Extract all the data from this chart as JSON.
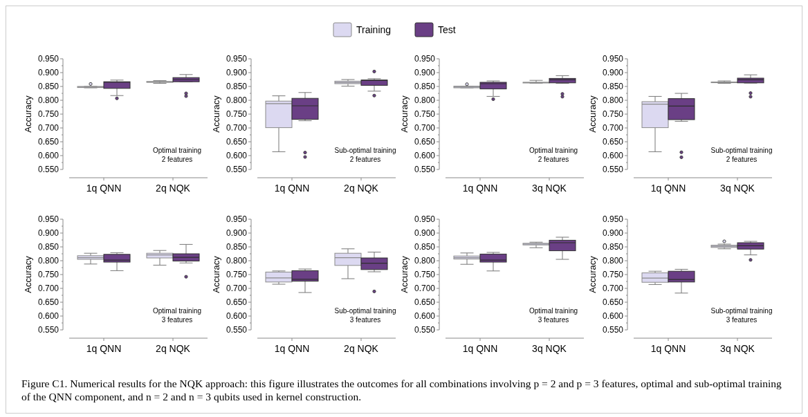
{
  "chart_data": [
    {
      "type": "box",
      "ylabel": "Accuracy",
      "categories": [
        "1q QNN",
        "2q NQK"
      ],
      "ylim": [
        0.55,
        0.95
      ],
      "yticks": [
        {
          "value": 0.55,
          "label": "0.550"
        },
        {
          "value": 0.575,
          "label": null
        },
        {
          "value": 0.6,
          "label": "0.600"
        },
        {
          "value": 0.625,
          "label": null
        },
        {
          "value": 0.65,
          "label": "0.650"
        },
        {
          "value": 0.675,
          "label": null
        },
        {
          "value": 0.7,
          "label": "0.700"
        },
        {
          "value": 0.725,
          "label": null
        },
        {
          "value": 0.75,
          "label": "0.750"
        },
        {
          "value": 0.775,
          "label": null
        },
        {
          "value": 0.8,
          "label": "0.800"
        },
        {
          "value": 0.825,
          "label": null
        },
        {
          "value": 0.85,
          "label": "0.850"
        },
        {
          "value": 0.875,
          "label": null
        },
        {
          "value": 0.9,
          "label": "0.900"
        },
        {
          "value": 0.925,
          "label": null
        },
        {
          "value": 0.95,
          "label": "0.950"
        }
      ],
      "legend": "top",
      "annotations": [
        "Optimal training",
        "2 features"
      ],
      "series": [
        {
          "name": "Training",
          "color": "#dcd9f1",
          "boxes": [
            {
              "low": 0.845,
              "q1": 0.846,
              "median": 0.848,
              "q3": 0.85,
              "high": 0.85,
              "outliers": [
                0.859
              ]
            },
            {
              "low": 0.861,
              "q1": 0.865,
              "median": 0.866,
              "q3": 0.868,
              "high": 0.871
            }
          ]
        },
        {
          "name": "Test",
          "color": "#6a3f85",
          "boxes": [
            {
              "low": 0.817,
              "q1": 0.843,
              "median": 0.865,
              "q3": 0.867,
              "high": 0.873,
              "outliers": [
                0.807
              ]
            },
            {
              "low": 0.867,
              "q1": 0.867,
              "median": 0.875,
              "q3": 0.882,
              "high": 0.893,
              "outliers": [
                0.825,
                0.815
              ]
            }
          ]
        }
      ]
    },
    {
      "type": "box",
      "ylabel": "Accuracy",
      "categories": [
        "1q QNN",
        "2q NQK"
      ],
      "ylim": [
        0.55,
        0.95
      ],
      "yticks": [
        {
          "value": 0.55,
          "label": "0.550"
        },
        {
          "value": 0.575,
          "label": null
        },
        {
          "value": 0.6,
          "label": "0.600"
        },
        {
          "value": 0.625,
          "label": null
        },
        {
          "value": 0.65,
          "label": "0.650"
        },
        {
          "value": 0.675,
          "label": null
        },
        {
          "value": 0.7,
          "label": "0.700"
        },
        {
          "value": 0.725,
          "label": null
        },
        {
          "value": 0.75,
          "label": "0.750"
        },
        {
          "value": 0.775,
          "label": null
        },
        {
          "value": 0.8,
          "label": "0.800"
        },
        {
          "value": 0.825,
          "label": null
        },
        {
          "value": 0.85,
          "label": "0.850"
        },
        {
          "value": 0.875,
          "label": null
        },
        {
          "value": 0.9,
          "label": "0.900"
        },
        {
          "value": 0.925,
          "label": null
        },
        {
          "value": 0.95,
          "label": "0.950"
        }
      ],
      "annotations": [
        "Sub-optimal training",
        "2 features"
      ],
      "series": [
        {
          "color": "#dcd9f1",
          "boxes": [
            {
              "low": 0.614,
              "q1": 0.701,
              "median": 0.788,
              "q3": 0.797,
              "high": 0.816
            },
            {
              "low": 0.851,
              "q1": 0.86,
              "median": 0.864,
              "q3": 0.869,
              "high": 0.875
            }
          ]
        },
        {
          "color": "#6a3f85",
          "boxes": [
            {
              "low": 0.726,
              "q1": 0.731,
              "median": 0.78,
              "q3": 0.807,
              "high": 0.828,
              "outliers": [
                0.611,
                0.595
              ]
            },
            {
              "low": 0.833,
              "q1": 0.854,
              "median": 0.872,
              "q3": 0.873,
              "high": 0.878,
              "outliers": [
                0.904,
                0.817
              ]
            }
          ]
        }
      ]
    },
    {
      "type": "box",
      "ylabel": "Accuracy",
      "categories": [
        "1q QNN",
        "3q NQK"
      ],
      "ylim": [
        0.55,
        0.95
      ],
      "yticks": [
        {
          "value": 0.55,
          "label": "0.550"
        },
        {
          "value": 0.575,
          "label": null
        },
        {
          "value": 0.6,
          "label": "0.600"
        },
        {
          "value": 0.625,
          "label": null
        },
        {
          "value": 0.65,
          "label": "0.650"
        },
        {
          "value": 0.675,
          "label": null
        },
        {
          "value": 0.7,
          "label": "0.700"
        },
        {
          "value": 0.725,
          "label": null
        },
        {
          "value": 0.75,
          "label": "0.750"
        },
        {
          "value": 0.775,
          "label": null
        },
        {
          "value": 0.8,
          "label": "0.800"
        },
        {
          "value": 0.825,
          "label": null
        },
        {
          "value": 0.85,
          "label": "0.850"
        },
        {
          "value": 0.875,
          "label": null
        },
        {
          "value": 0.9,
          "label": "0.900"
        },
        {
          "value": 0.925,
          "label": null
        },
        {
          "value": 0.95,
          "label": "0.950"
        }
      ],
      "annotations": [
        "Optimal training",
        "2 features"
      ],
      "series": [
        {
          "color": "#dcd9f1",
          "boxes": [
            {
              "low": 0.845,
              "q1": 0.845,
              "median": 0.848,
              "q3": 0.851,
              "high": 0.851,
              "outliers": [
                0.858
              ]
            },
            {
              "low": 0.862,
              "q1": 0.863,
              "median": 0.864,
              "q3": 0.865,
              "high": 0.872
            }
          ]
        },
        {
          "color": "#6a3f85",
          "boxes": [
            {
              "low": 0.814,
              "q1": 0.841,
              "median": 0.86,
              "q3": 0.865,
              "high": 0.87,
              "outliers": [
                0.804
              ]
            },
            {
              "low": 0.861,
              "q1": 0.863,
              "median": 0.874,
              "q3": 0.879,
              "high": 0.889,
              "outliers": [
                0.823,
                0.813
              ]
            }
          ]
        }
      ]
    },
    {
      "type": "box",
      "ylabel": "Accuracy",
      "categories": [
        "1q QNN",
        "3q NQK"
      ],
      "ylim": [
        0.55,
        0.95
      ],
      "yticks": [
        {
          "value": 0.55,
          "label": "0.550"
        },
        {
          "value": 0.575,
          "label": null
        },
        {
          "value": 0.6,
          "label": "0.600"
        },
        {
          "value": 0.625,
          "label": null
        },
        {
          "value": 0.65,
          "label": "0.650"
        },
        {
          "value": 0.675,
          "label": null
        },
        {
          "value": 0.7,
          "label": "0.700"
        },
        {
          "value": 0.725,
          "label": null
        },
        {
          "value": 0.75,
          "label": "0.750"
        },
        {
          "value": 0.775,
          "label": null
        },
        {
          "value": 0.8,
          "label": "0.800"
        },
        {
          "value": 0.825,
          "label": null
        },
        {
          "value": 0.85,
          "label": "0.850"
        },
        {
          "value": 0.875,
          "label": null
        },
        {
          "value": 0.9,
          "label": "0.900"
        },
        {
          "value": 0.925,
          "label": null
        },
        {
          "value": 0.95,
          "label": "0.950"
        }
      ],
      "annotations": [
        "Sub-optimal training",
        "2 features"
      ],
      "series": [
        {
          "color": "#dcd9f1",
          "boxes": [
            {
              "low": 0.614,
              "q1": 0.701,
              "median": 0.786,
              "q3": 0.795,
              "high": 0.814
            },
            {
              "low": 0.861,
              "q1": 0.864,
              "median": 0.865,
              "q3": 0.866,
              "high": 0.87
            }
          ]
        },
        {
          "color": "#6a3f85",
          "boxes": [
            {
              "low": 0.724,
              "q1": 0.73,
              "median": 0.779,
              "q3": 0.806,
              "high": 0.825,
              "outliers": [
                0.612,
                0.594
              ]
            },
            {
              "low": 0.862,
              "q1": 0.863,
              "median": 0.874,
              "q3": 0.88,
              "high": 0.892,
              "outliers": [
                0.826,
                0.813
              ]
            }
          ]
        }
      ]
    },
    {
      "type": "box",
      "ylabel": "Accuracy",
      "categories": [
        "1q QNN",
        "2q NQK"
      ],
      "ylim": [
        0.55,
        0.95
      ],
      "yticks": [
        {
          "value": 0.55,
          "label": "0.550"
        },
        {
          "value": 0.575,
          "label": null
        },
        {
          "value": 0.6,
          "label": "0.600"
        },
        {
          "value": 0.625,
          "label": null
        },
        {
          "value": 0.65,
          "label": "0.650"
        },
        {
          "value": 0.675,
          "label": null
        },
        {
          "value": 0.7,
          "label": "0.700"
        },
        {
          "value": 0.725,
          "label": null
        },
        {
          "value": 0.75,
          "label": "0.750"
        },
        {
          "value": 0.775,
          "label": null
        },
        {
          "value": 0.8,
          "label": "0.800"
        },
        {
          "value": 0.825,
          "label": null
        },
        {
          "value": 0.85,
          "label": "0.850"
        },
        {
          "value": 0.875,
          "label": null
        },
        {
          "value": 0.9,
          "label": "0.900"
        },
        {
          "value": 0.925,
          "label": null
        },
        {
          "value": 0.95,
          "label": "0.950"
        }
      ],
      "annotations": [
        "Optimal training",
        "3 features"
      ],
      "series": [
        {
          "color": "#dcd9f1",
          "boxes": [
            {
              "low": 0.788,
              "q1": 0.805,
              "median": 0.811,
              "q3": 0.818,
              "high": 0.827
            },
            {
              "low": 0.784,
              "q1": 0.81,
              "median": 0.821,
              "q3": 0.827,
              "high": 0.837
            }
          ]
        },
        {
          "color": "#6a3f85",
          "boxes": [
            {
              "low": 0.764,
              "q1": 0.795,
              "median": 0.802,
              "q3": 0.823,
              "high": 0.829
            },
            {
              "low": 0.792,
              "q1": 0.799,
              "median": 0.812,
              "q3": 0.825,
              "high": 0.859,
              "outliers": [
                0.742
              ]
            }
          ]
        }
      ]
    },
    {
      "type": "box",
      "ylabel": "Accuracy",
      "categories": [
        "1q QNN",
        "2q NQK"
      ],
      "ylim": [
        0.55,
        0.95
      ],
      "yticks": [
        {
          "value": 0.55,
          "label": "0.550"
        },
        {
          "value": 0.575,
          "label": null
        },
        {
          "value": 0.6,
          "label": "0.600"
        },
        {
          "value": 0.625,
          "label": null
        },
        {
          "value": 0.65,
          "label": "0.650"
        },
        {
          "value": 0.675,
          "label": null
        },
        {
          "value": 0.7,
          "label": "0.700"
        },
        {
          "value": 0.725,
          "label": null
        },
        {
          "value": 0.75,
          "label": "0.750"
        },
        {
          "value": 0.775,
          "label": null
        },
        {
          "value": 0.8,
          "label": "0.800"
        },
        {
          "value": 0.825,
          "label": null
        },
        {
          "value": 0.85,
          "label": "0.850"
        },
        {
          "value": 0.875,
          "label": null
        },
        {
          "value": 0.9,
          "label": "0.900"
        },
        {
          "value": 0.925,
          "label": null
        },
        {
          "value": 0.95,
          "label": "0.950"
        }
      ],
      "annotations": [
        "Sub-optimal training",
        "3 features"
      ],
      "series": [
        {
          "color": "#dcd9f1",
          "boxes": [
            {
              "low": 0.715,
              "q1": 0.723,
              "median": 0.738,
              "q3": 0.759,
              "high": 0.763
            },
            {
              "low": 0.735,
              "q1": 0.783,
              "median": 0.811,
              "q3": 0.827,
              "high": 0.843
            }
          ]
        },
        {
          "color": "#6a3f85",
          "boxes": [
            {
              "low": 0.685,
              "q1": 0.726,
              "median": 0.733,
              "q3": 0.764,
              "high": 0.77
            },
            {
              "low": 0.76,
              "q1": 0.768,
              "median": 0.791,
              "q3": 0.81,
              "high": 0.831,
              "outliers": [
                0.689
              ]
            }
          ]
        }
      ]
    },
    {
      "type": "box",
      "ylabel": "Accuracy",
      "categories": [
        "1q QNN",
        "3q NQK"
      ],
      "ylim": [
        0.55,
        0.95
      ],
      "yticks": [
        {
          "value": 0.55,
          "label": "0.550"
        },
        {
          "value": 0.575,
          "label": null
        },
        {
          "value": 0.6,
          "label": "0.600"
        },
        {
          "value": 0.625,
          "label": null
        },
        {
          "value": 0.65,
          "label": "0.650"
        },
        {
          "value": 0.675,
          "label": null
        },
        {
          "value": 0.7,
          "label": "0.700"
        },
        {
          "value": 0.725,
          "label": null
        },
        {
          "value": 0.75,
          "label": "0.750"
        },
        {
          "value": 0.775,
          "label": null
        },
        {
          "value": 0.8,
          "label": "0.800"
        },
        {
          "value": 0.825,
          "label": null
        },
        {
          "value": 0.85,
          "label": "0.850"
        },
        {
          "value": 0.875,
          "label": null
        },
        {
          "value": 0.9,
          "label": "0.900"
        },
        {
          "value": 0.925,
          "label": null
        },
        {
          "value": 0.95,
          "label": "0.950"
        }
      ],
      "annotations": [
        "Optimal training",
        "3 features"
      ],
      "series": [
        {
          "color": "#dcd9f1",
          "boxes": [
            {
              "low": 0.787,
              "q1": 0.806,
              "median": 0.811,
              "q3": 0.817,
              "high": 0.828
            },
            {
              "low": 0.847,
              "q1": 0.857,
              "median": 0.86,
              "q3": 0.863,
              "high": 0.867
            }
          ]
        },
        {
          "color": "#6a3f85",
          "boxes": [
            {
              "low": 0.763,
              "q1": 0.795,
              "median": 0.802,
              "q3": 0.824,
              "high": 0.83
            },
            {
              "low": 0.805,
              "q1": 0.836,
              "median": 0.865,
              "q3": 0.874,
              "high": 0.885
            }
          ]
        }
      ]
    },
    {
      "type": "box",
      "ylabel": "Accuracy",
      "categories": [
        "1q QNN",
        "3q NQK"
      ],
      "ylim": [
        0.55,
        0.95
      ],
      "yticks": [
        {
          "value": 0.55,
          "label": "0.550"
        },
        {
          "value": 0.575,
          "label": null
        },
        {
          "value": 0.6,
          "label": "0.600"
        },
        {
          "value": 0.625,
          "label": null
        },
        {
          "value": 0.65,
          "label": "0.650"
        },
        {
          "value": 0.675,
          "label": null
        },
        {
          "value": 0.7,
          "label": "0.700"
        },
        {
          "value": 0.725,
          "label": null
        },
        {
          "value": 0.75,
          "label": "0.750"
        },
        {
          "value": 0.775,
          "label": null
        },
        {
          "value": 0.8,
          "label": "0.800"
        },
        {
          "value": 0.825,
          "label": null
        },
        {
          "value": 0.85,
          "label": "0.850"
        },
        {
          "value": 0.875,
          "label": null
        },
        {
          "value": 0.9,
          "label": "0.900"
        },
        {
          "value": 0.925,
          "label": null
        },
        {
          "value": 0.95,
          "label": "0.950"
        }
      ],
      "annotations": [
        "Sub-optimal training",
        "3 features",
        "Figure C1. Numerical results for the NQK approach: this figure illustrates the outcomes for all combinations involving p = 2 and p = 3 features, optimal and sub-optimal training of the QNN component, and n = 2 and n = 3 qubits used in kernel construction."
      ],
      "series": [
        {
          "color": "#dcd9f1",
          "boxes": [
            {
              "low": 0.714,
              "q1": 0.722,
              "median": 0.737,
              "q3": 0.756,
              "high": 0.762
            },
            {
              "low": 0.843,
              "q1": 0.848,
              "median": 0.852,
              "q3": 0.856,
              "high": 0.86,
              "outliers": [
                0.87
              ]
            }
          ]
        },
        {
          "color": "#6a3f85",
          "boxes": [
            {
              "low": 0.683,
              "q1": 0.723,
              "median": 0.732,
              "q3": 0.762,
              "high": 0.769
            },
            {
              "low": 0.821,
              "q1": 0.842,
              "median": 0.854,
              "q3": 0.865,
              "high": 0.87,
              "outliers": [
                0.803
              ]
            }
          ]
        }
      ]
    }
  ]
}
